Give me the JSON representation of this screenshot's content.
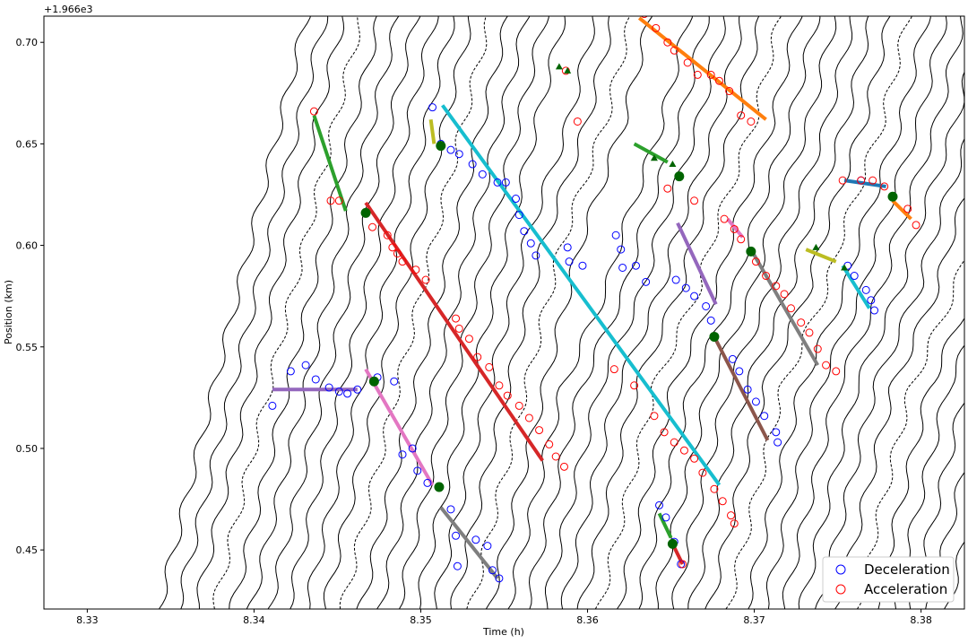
{
  "chart_data": {
    "type": "line",
    "offset_text": "+1.966e3",
    "xlabel": "Time (h)",
    "ylabel": "Position (km)",
    "xlim": [
      8.3274,
      8.3826
    ],
    "ylim": [
      0.4209,
      0.7129
    ],
    "x_ticks": [
      {
        "value": 8.33,
        "label": "8.33"
      },
      {
        "value": 8.34,
        "label": "8.34"
      },
      {
        "value": 8.35,
        "label": "8.35"
      },
      {
        "value": 8.36,
        "label": "8.36"
      },
      {
        "value": 8.37,
        "label": "8.37"
      },
      {
        "value": 8.38,
        "label": "8.38"
      }
    ],
    "y_ticks": [
      {
        "value": 0.45,
        "label": "0.45"
      },
      {
        "value": 0.5,
        "label": "0.50"
      },
      {
        "value": 0.55,
        "label": "0.55"
      },
      {
        "value": 0.6,
        "label": "0.60"
      },
      {
        "value": 0.65,
        "label": "0.65"
      },
      {
        "value": 0.7,
        "label": "0.70"
      }
    ],
    "grid": false,
    "legend_position": "bottom-right",
    "legend": [
      {
        "label": "Deceleration",
        "marker": "circle-open",
        "color": "#0000ff"
      },
      {
        "label": "Acceleration",
        "marker": "circle-open",
        "color": "#ff0000"
      }
    ],
    "trajectories": {
      "count": 50,
      "color": "#000000",
      "description_free": true,
      "entry_times_at_bottom": [
        8.3343,
        8.3354,
        8.3365,
        8.3376,
        8.3387,
        8.3398,
        8.3409,
        8.342,
        8.3431,
        8.3442,
        8.3453,
        8.3464,
        8.3475,
        8.3486,
        8.3497,
        8.3508,
        8.3519,
        8.353,
        8.3541,
        8.3552,
        8.3563,
        8.3574,
        8.3585,
        8.3596,
        8.3607,
        8.3618,
        8.3629,
        8.364,
        8.3651,
        8.3662,
        8.3673,
        8.3684,
        8.3695,
        8.3706,
        8.3717,
        8.3728,
        8.3739,
        8.375,
        8.3761,
        8.3772,
        8.3783,
        8.3794,
        8.3805,
        8.3816,
        8.3827,
        8.3838,
        8.3849,
        8.386,
        8.3871,
        8.3882
      ],
      "slope_km_per_h": 33.0
    },
    "wave_lines": [
      {
        "color": "#2ca02c",
        "x": [
          8.3436,
          8.3455
        ],
        "y": [
          0.664,
          0.617
        ]
      },
      {
        "color": "#d62728",
        "x": [
          8.3467,
          8.3573
        ],
        "y": [
          0.621,
          0.494
        ]
      },
      {
        "color": "#bcbd22",
        "x": [
          8.3506,
          8.3508
        ],
        "y": [
          0.662,
          0.65
        ]
      },
      {
        "color": "#17becf",
        "x": [
          8.3513,
          8.3679
        ],
        "y": [
          0.669,
          0.482
        ]
      },
      {
        "color": "#9467bd",
        "x": [
          8.3411,
          8.3462
        ],
        "y": [
          0.529,
          0.529
        ]
      },
      {
        "color": "#e377c2",
        "x": [
          8.3467,
          8.3507
        ],
        "y": [
          0.539,
          0.482
        ]
      },
      {
        "color": "#7f7f7f",
        "x": [
          8.3512,
          8.3546
        ],
        "y": [
          0.471,
          0.436
        ]
      },
      {
        "color": "#ff7f0e",
        "x": [
          8.3631,
          8.3707
        ],
        "y": [
          0.712,
          0.662
        ]
      },
      {
        "color": "#2ca02c",
        "x": [
          8.3628,
          8.3648
        ],
        "y": [
          0.65,
          0.641
        ]
      },
      {
        "color": "#9467bd",
        "x": [
          8.3654,
          8.3677
        ],
        "y": [
          0.611,
          0.571
        ]
      },
      {
        "color": "#e377c2",
        "x": [
          8.3684,
          8.3693
        ],
        "y": [
          0.613,
          0.604
        ]
      },
      {
        "color": "#7f7f7f",
        "x": [
          8.3698,
          8.3738
        ],
        "y": [
          0.598,
          0.541
        ]
      },
      {
        "color": "#8c564b",
        "x": [
          8.3676,
          8.3708
        ],
        "y": [
          0.555,
          0.504
        ]
      },
      {
        "color": "#2ca02c",
        "x": [
          8.3643,
          8.365
        ],
        "y": [
          0.468,
          0.456
        ]
      },
      {
        "color": "#d62728",
        "x": [
          8.3651,
          8.3657
        ],
        "y": [
          0.453,
          0.443
        ]
      },
      {
        "color": "#1f77b4",
        "x": [
          8.3754,
          8.3779
        ],
        "y": [
          0.632,
          0.629
        ]
      },
      {
        "color": "#ff7f0e",
        "x": [
          8.3783,
          8.3794
        ],
        "y": [
          0.622,
          0.613
        ]
      },
      {
        "color": "#bcbd22",
        "x": [
          8.3731,
          8.3749
        ],
        "y": [
          0.598,
          0.592
        ]
      },
      {
        "color": "#17becf",
        "x": [
          8.3753,
          8.3769
        ],
        "y": [
          0.59,
          0.569
        ]
      }
    ],
    "deceleration_points": [
      [
        8.3411,
        0.521
      ],
      [
        8.3422,
        0.538
      ],
      [
        8.3431,
        0.541
      ],
      [
        8.3437,
        0.534
      ],
      [
        8.3445,
        0.53
      ],
      [
        8.3451,
        0.528
      ],
      [
        8.3456,
        0.527
      ],
      [
        8.3462,
        0.529
      ],
      [
        8.3474,
        0.535
      ],
      [
        8.3484,
        0.533
      ],
      [
        8.3489,
        0.497
      ],
      [
        8.3495,
        0.5
      ],
      [
        8.3498,
        0.489
      ],
      [
        8.3504,
        0.483
      ],
      [
        8.3507,
        0.668
      ],
      [
        8.3512,
        0.65
      ],
      [
        8.3518,
        0.647
      ],
      [
        8.3523,
        0.645
      ],
      [
        8.3531,
        0.64
      ],
      [
        8.3537,
        0.635
      ],
      [
        8.3546,
        0.631
      ],
      [
        8.3551,
        0.631
      ],
      [
        8.3557,
        0.623
      ],
      [
        8.3559,
        0.615
      ],
      [
        8.3562,
        0.607
      ],
      [
        8.3566,
        0.601
      ],
      [
        8.3569,
        0.595
      ],
      [
        8.3588,
        0.599
      ],
      [
        8.3589,
        0.592
      ],
      [
        8.3597,
        0.59
      ],
      [
        8.3617,
        0.605
      ],
      [
        8.362,
        0.598
      ],
      [
        8.3621,
        0.589
      ],
      [
        8.3629,
        0.59
      ],
      [
        8.3635,
        0.582
      ],
      [
        8.3518,
        0.47
      ],
      [
        8.3521,
        0.457
      ],
      [
        8.3522,
        0.442
      ],
      [
        8.3533,
        0.455
      ],
      [
        8.354,
        0.452
      ],
      [
        8.3543,
        0.44
      ],
      [
        8.3547,
        0.436
      ],
      [
        8.3653,
        0.583
      ],
      [
        8.3659,
        0.579
      ],
      [
        8.3664,
        0.575
      ],
      [
        8.3671,
        0.57
      ],
      [
        8.3674,
        0.563
      ],
      [
        8.3676,
        0.555
      ],
      [
        8.3687,
        0.544
      ],
      [
        8.3691,
        0.538
      ],
      [
        8.3696,
        0.529
      ],
      [
        8.3701,
        0.523
      ],
      [
        8.3706,
        0.516
      ],
      [
        8.3713,
        0.508
      ],
      [
        8.3714,
        0.503
      ],
      [
        8.3643,
        0.472
      ],
      [
        8.3647,
        0.466
      ],
      [
        8.3652,
        0.454
      ],
      [
        8.3656,
        0.443
      ],
      [
        8.3756,
        0.59
      ],
      [
        8.376,
        0.585
      ],
      [
        8.3767,
        0.578
      ],
      [
        8.377,
        0.573
      ],
      [
        8.3772,
        0.568
      ],
      [
        8.3764,
        0.632
      ]
    ],
    "acceleration_points": [
      [
        8.3436,
        0.666
      ],
      [
        8.3446,
        0.622
      ],
      [
        8.3451,
        0.622
      ],
      [
        8.3471,
        0.609
      ],
      [
        8.348,
        0.605
      ],
      [
        8.3483,
        0.599
      ],
      [
        8.3486,
        0.596
      ],
      [
        8.3489,
        0.592
      ],
      [
        8.3497,
        0.588
      ],
      [
        8.3503,
        0.583
      ],
      [
        8.3521,
        0.564
      ],
      [
        8.3523,
        0.559
      ],
      [
        8.3529,
        0.554
      ],
      [
        8.3534,
        0.545
      ],
      [
        8.3541,
        0.54
      ],
      [
        8.3547,
        0.531
      ],
      [
        8.3552,
        0.526
      ],
      [
        8.3559,
        0.521
      ],
      [
        8.3565,
        0.515
      ],
      [
        8.3571,
        0.509
      ],
      [
        8.3577,
        0.502
      ],
      [
        8.3581,
        0.496
      ],
      [
        8.3586,
        0.491
      ],
      [
        8.3634,
        0.714
      ],
      [
        8.3641,
        0.707
      ],
      [
        8.3648,
        0.7
      ],
      [
        8.3652,
        0.696
      ],
      [
        8.366,
        0.69
      ],
      [
        8.3666,
        0.684
      ],
      [
        8.3674,
        0.684
      ],
      [
        8.3679,
        0.681
      ],
      [
        8.3685,
        0.676
      ],
      [
        8.3692,
        0.664
      ],
      [
        8.3698,
        0.661
      ],
      [
        8.3587,
        0.686
      ],
      [
        8.3594,
        0.661
      ],
      [
        8.3648,
        0.628
      ],
      [
        8.3664,
        0.622
      ],
      [
        8.3682,
        0.613
      ],
      [
        8.3688,
        0.608
      ],
      [
        8.3692,
        0.603
      ],
      [
        8.3701,
        0.592
      ],
      [
        8.3707,
        0.585
      ],
      [
        8.3713,
        0.58
      ],
      [
        8.3718,
        0.576
      ],
      [
        8.3722,
        0.569
      ],
      [
        8.3728,
        0.562
      ],
      [
        8.3733,
        0.557
      ],
      [
        8.3738,
        0.549
      ],
      [
        8.3743,
        0.541
      ],
      [
        8.3749,
        0.538
      ],
      [
        8.3616,
        0.539
      ],
      [
        8.3628,
        0.531
      ],
      [
        8.364,
        0.516
      ],
      [
        8.3646,
        0.508
      ],
      [
        8.3652,
        0.503
      ],
      [
        8.3658,
        0.499
      ],
      [
        8.3664,
        0.495
      ],
      [
        8.3669,
        0.488
      ],
      [
        8.3676,
        0.48
      ],
      [
        8.3681,
        0.474
      ],
      [
        8.3686,
        0.467
      ],
      [
        8.3688,
        0.463
      ],
      [
        8.3651,
        0.453
      ],
      [
        8.3657,
        0.443
      ],
      [
        8.3753,
        0.632
      ],
      [
        8.3764,
        0.632
      ],
      [
        8.3771,
        0.632
      ],
      [
        8.3778,
        0.629
      ],
      [
        8.3792,
        0.618
      ],
      [
        8.3797,
        0.61
      ]
    ],
    "green_circles": [
      [
        8.3467,
        0.616
      ],
      [
        8.3512,
        0.649
      ],
      [
        8.3472,
        0.533
      ],
      [
        8.3511,
        0.481
      ],
      [
        8.3655,
        0.634
      ],
      [
        8.3698,
        0.597
      ],
      [
        8.3676,
        0.555
      ],
      [
        8.3651,
        0.453
      ],
      [
        8.3783,
        0.624
      ]
    ],
    "green_triangles": [
      [
        8.3583,
        0.688
      ],
      [
        8.3588,
        0.686
      ],
      [
        8.364,
        0.643
      ],
      [
        8.3651,
        0.64
      ],
      [
        8.3737,
        0.599
      ],
      [
        8.3754,
        0.589
      ]
    ]
  }
}
